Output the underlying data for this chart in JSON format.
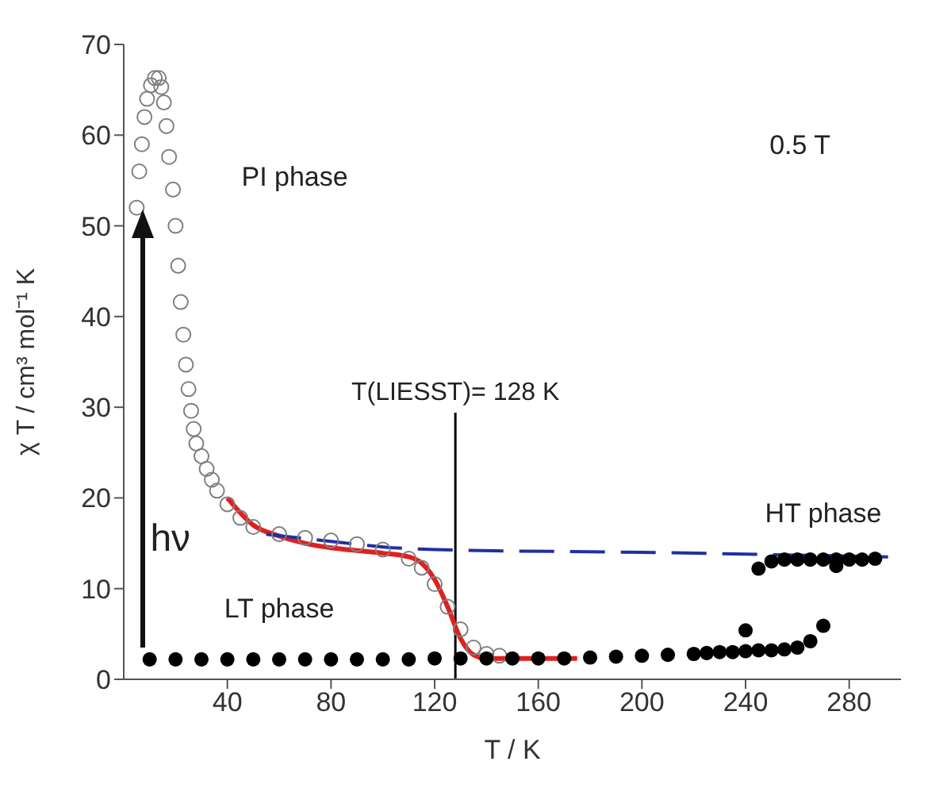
{
  "chart_data": {
    "type": "scatter",
    "xlabel": "T / K",
    "ylabel": "χ T / cm³ mol⁻¹ K",
    "xlim": [
      0,
      300
    ],
    "ylim": [
      0,
      70
    ],
    "xticks": [
      40,
      80,
      120,
      160,
      200,
      240,
      280
    ],
    "yticks": [
      0,
      10,
      20,
      30,
      40,
      50,
      60,
      70
    ],
    "marker": "circle",
    "series": [
      {
        "color": "#808080",
        "x": [
          5,
          6,
          7,
          8,
          9,
          10.5,
          12,
          13.5,
          14.5,
          15.5,
          16.5,
          17.5,
          19,
          20,
          21,
          22,
          23,
          24,
          25,
          26,
          27,
          28,
          30,
          32,
          34,
          36,
          40,
          45,
          50,
          60,
          70,
          80,
          90,
          100,
          110,
          115,
          120,
          125,
          130,
          135,
          140,
          145
        ],
        "values": [
          52,
          56,
          59,
          62,
          64,
          65.5,
          66.3,
          66.3,
          65.3,
          63.6,
          61,
          57.6,
          54,
          50,
          45.6,
          41.6,
          38,
          34.7,
          32,
          29.6,
          27.6,
          26,
          24.6,
          23.2,
          22,
          20.8,
          19.3,
          17.8,
          16.8,
          16,
          15.6,
          15.3,
          14.9,
          14.3,
          13.3,
          12.3,
          10.5,
          8,
          5.5,
          3.5,
          2.8,
          2.6
        ]
      },
      {
        "color": "#000000",
        "x": [
          10,
          20,
          30,
          40,
          50,
          60,
          70,
          80,
          90,
          100,
          110,
          120,
          130,
          140,
          150,
          160,
          170,
          180,
          190,
          200,
          210,
          220,
          225,
          230,
          235,
          240,
          240,
          245,
          250,
          255,
          260,
          265,
          270,
          245,
          250,
          255,
          260,
          265,
          270,
          275,
          275,
          280,
          285,
          290
        ],
        "values": [
          2.2,
          2.2,
          2.2,
          2.2,
          2.2,
          2.2,
          2.2,
          2.2,
          2.2,
          2.2,
          2.2,
          2.3,
          2.3,
          2.3,
          2.3,
          2.3,
          2.3,
          2.4,
          2.5,
          2.6,
          2.7,
          2.8,
          2.9,
          3,
          3,
          3.1,
          5.4,
          3.2,
          3.2,
          3.3,
          3.5,
          4.2,
          5.9,
          12.2,
          13,
          13.2,
          13.2,
          13.2,
          13.2,
          13.2,
          12.5,
          13.2,
          13.2,
          13.3
        ]
      },
      {
        "type": "line",
        "color": "#e02020",
        "line_style": "solid",
        "marker": "none",
        "x": [
          40,
          50,
          60,
          70,
          80,
          90,
          100,
          110,
          115,
          120,
          125,
          130,
          135,
          140,
          150,
          175
        ],
        "values": [
          20,
          17,
          15.8,
          15,
          14.5,
          14.2,
          13.9,
          13.5,
          12.8,
          11,
          8,
          4.5,
          2.7,
          2.3,
          2.3,
          2.3
        ]
      },
      {
        "type": "line",
        "color": "#2030a0",
        "line_style": "dashed",
        "marker": "none",
        "x": [
          55,
          80,
          100,
          120,
          200,
          295
        ],
        "values": [
          16,
          15.2,
          14.6,
          14.3,
          14,
          13.5
        ]
      }
    ],
    "ref_lines": [
      {
        "axis": "x",
        "value": 128,
        "label": "T(LIESST)= 128 K",
        "color": "#000000"
      }
    ],
    "annotations": [
      "PI phase",
      "0.5 T",
      "HT phase",
      "LT phase",
      "hν"
    ]
  }
}
